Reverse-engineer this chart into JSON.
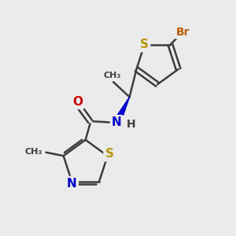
{
  "background_color": "#ebebeb",
  "bond_color": "#3d3d3d",
  "bond_width": 1.8,
  "atom_colors": {
    "S": "#b8960a",
    "N": "#0000cc",
    "O": "#cc0000",
    "Br": "#b86000",
    "C": "#3d3d3d",
    "H": "#3d3d3d"
  },
  "figsize": [
    3.0,
    3.0
  ],
  "dpi": 100
}
